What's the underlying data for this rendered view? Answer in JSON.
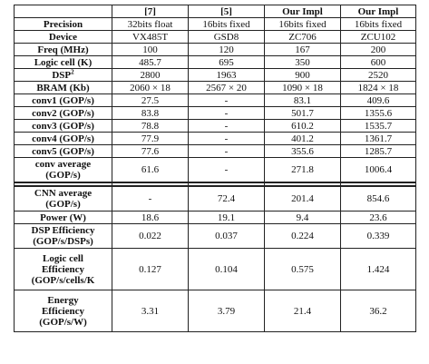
{
  "headers": [
    "",
    "[7]",
    "[5]",
    "Our Impl",
    "Our Impl"
  ],
  "top_rows": [
    {
      "label": "Precision",
      "values": [
        "32bits float",
        "16bits fixed",
        "16bits fixed",
        "16bits fixed"
      ]
    },
    {
      "label": "Device",
      "values": [
        "VX485T",
        "GSD8",
        "ZC706",
        "ZCU102"
      ]
    },
    {
      "label": "Freq (MHz)",
      "values": [
        "100",
        "120",
        "167",
        "200"
      ]
    },
    {
      "label": "Logic cell (K)",
      "values": [
        "485.7",
        "695",
        "350",
        "600"
      ]
    },
    {
      "label": "DSP",
      "label_sup": "2",
      "values": [
        "2800",
        "1963",
        "900",
        "2520"
      ]
    },
    {
      "label": "BRAM (Kb)",
      "values": [
        "2060 × 18",
        "2567 × 20",
        "1090 × 18",
        "1824 × 18"
      ]
    },
    {
      "label": "conv1 (GOP/s)",
      "values": [
        "27.5",
        "-",
        "83.1",
        "409.6"
      ]
    },
    {
      "label": "conv2 (GOP/s)",
      "values": [
        "83.8",
        "-",
        "501.7",
        "1355.6"
      ]
    },
    {
      "label": "conv3 (GOP/s)",
      "values": [
        "78.8",
        "-",
        "610.2",
        "1535.7"
      ]
    },
    {
      "label": "conv4 (GOP/s)",
      "values": [
        "77.9",
        "-",
        "401.2",
        "1361.7"
      ]
    },
    {
      "label": "conv5 (GOP/s)",
      "values": [
        "77.6",
        "-",
        "355.6",
        "1285.7"
      ]
    },
    {
      "label": "conv average (GOP/s)",
      "label_lines": [
        "conv average",
        "(GOP/s)"
      ],
      "values": [
        "61.6",
        "-",
        "271.8",
        "1006.4"
      ]
    }
  ],
  "bottom_rows": [
    {
      "label_lines": [
        "CNN average",
        "(GOP/s)"
      ],
      "values": [
        "-",
        "72.4",
        "201.4",
        "854.6"
      ]
    },
    {
      "label_lines": [
        "Power (W)"
      ],
      "values": [
        "18.6",
        "19.1",
        "9.4",
        "23.6"
      ]
    },
    {
      "label_lines": [
        "DSP Efficiency",
        "(GOP/s/DSPs)"
      ],
      "values": [
        "0.022",
        "0.037",
        "0.224",
        "0.339"
      ]
    },
    {
      "label_lines": [
        "Logic cell",
        "Efficiency",
        "(GOP/s/cells/K"
      ],
      "values": [
        "0.127",
        "0.104",
        "0.575",
        "1.424"
      ]
    },
    {
      "label_lines": [
        "Energy",
        "Efficiency",
        "(GOP/s/W)"
      ],
      "values": [
        "3.31",
        "3.79",
        "21.4",
        "36.2"
      ]
    }
  ]
}
